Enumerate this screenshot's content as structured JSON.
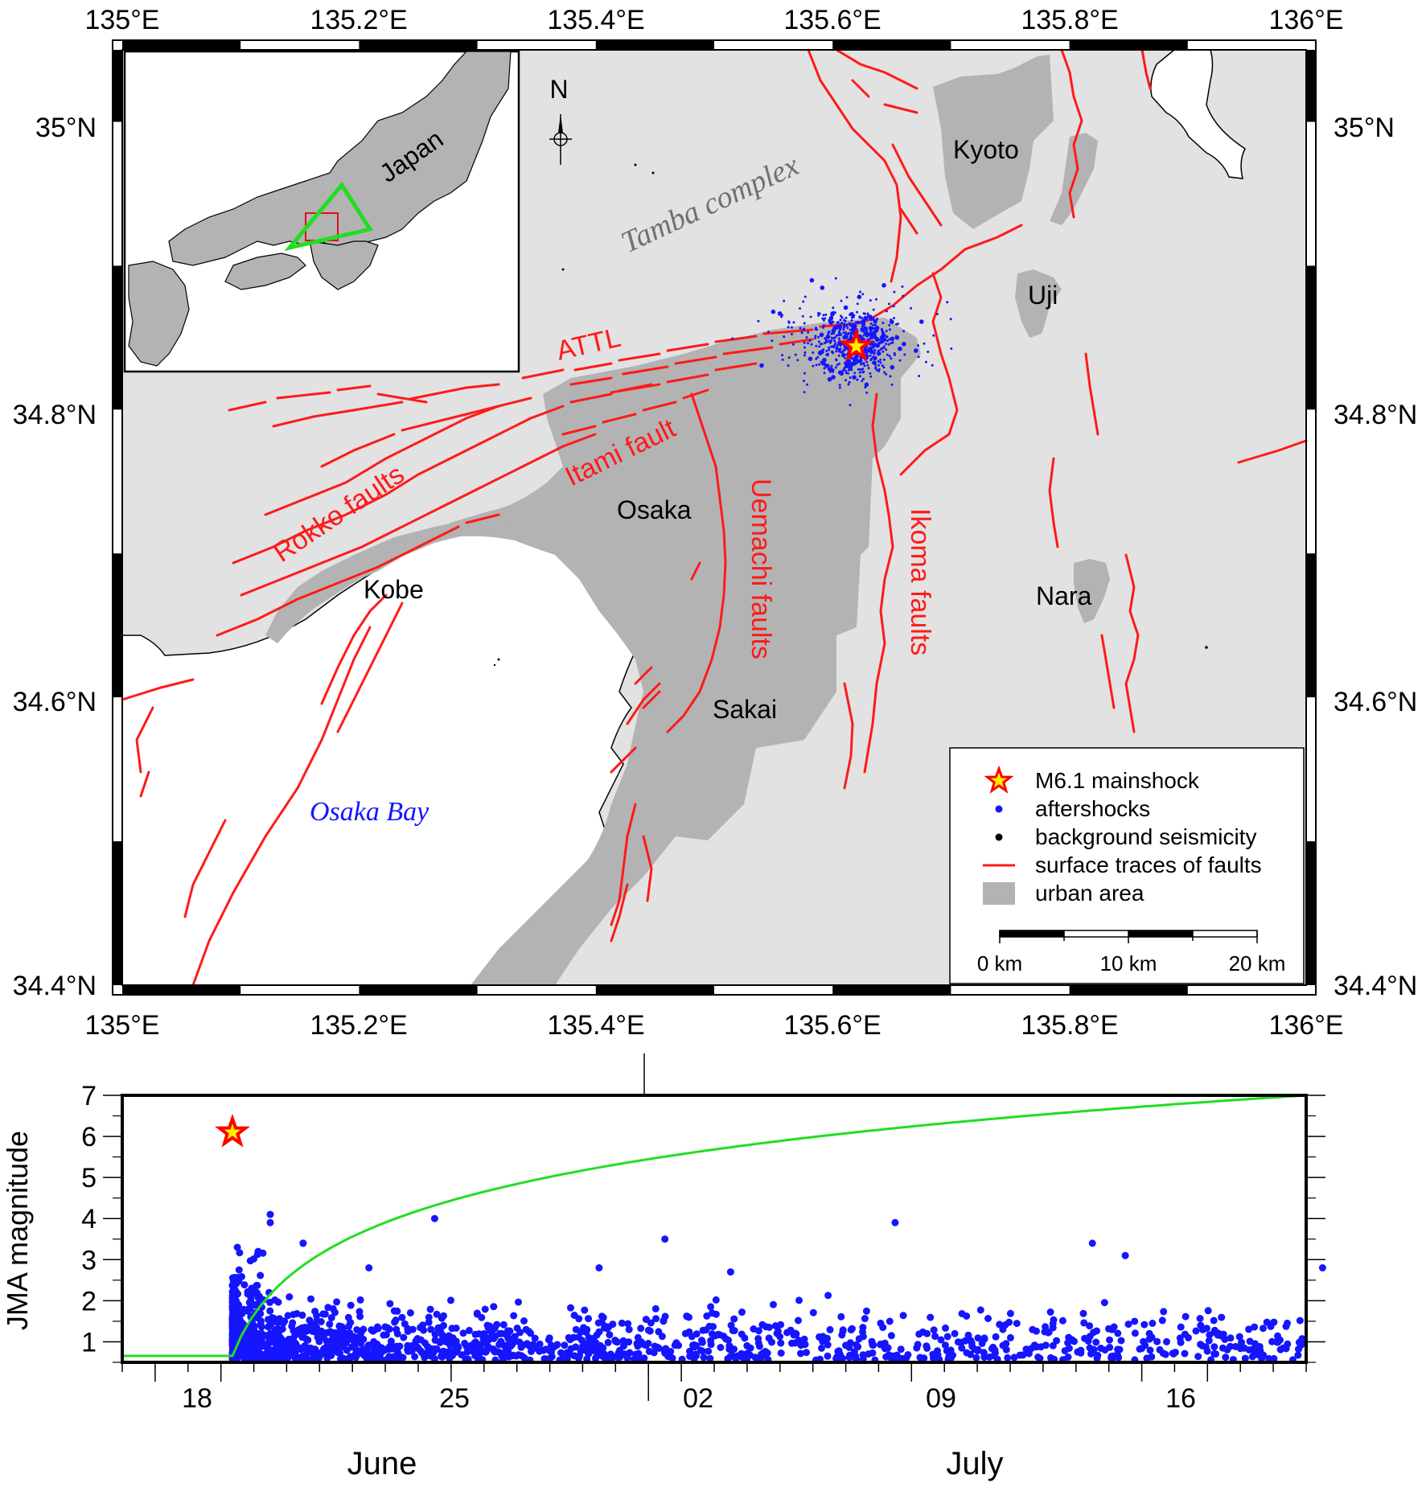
{
  "map": {
    "lon_ticks": [
      "135°E",
      "135.2°E",
      "135.4°E",
      "135.6°E",
      "135.8°E",
      "136°E"
    ],
    "lat_ticks": [
      "35°N",
      "34.8°N",
      "34.6°N",
      "34.4°N"
    ],
    "north_label": "N",
    "region_labels": {
      "tamba": "Tamba complex",
      "osaka_bay": "Osaka Bay"
    },
    "city_labels": {
      "kyoto": "Kyoto",
      "uji": "Uji",
      "osaka": "Osaka",
      "kobe": "Kobe",
      "sakai": "Sakai",
      "nara": "Nara"
    },
    "fault_labels": {
      "attl": "ATTL",
      "itami": "Itami fault",
      "rokko": "Rokko faults",
      "uemachi": "Uemachi faults",
      "ikoma": "Ikoma faults"
    },
    "inset": {
      "label": "Japan"
    },
    "mainshock": {
      "lon": 135.62,
      "lat": 34.844,
      "magnitude": 6.1
    },
    "colors": {
      "land": "#e2e2e2",
      "urban": "#b3b3b3",
      "water": "#ffffff",
      "fault": "#ff1a1a",
      "aftershock": "#1515ff",
      "background": "#000000",
      "inset_box": "#e01010",
      "inset_triangle": "#22dd22",
      "star_fill": "#ffee00",
      "star_stroke": "#ff0000"
    }
  },
  "legend": {
    "items": [
      {
        "icon": "star-icon",
        "label": "M6.1 mainshock"
      },
      {
        "icon": "blue-dot-icon",
        "label": "aftershocks"
      },
      {
        "icon": "black-dot-icon",
        "label": "background seismicity"
      },
      {
        "icon": "red-line-icon",
        "label": "surface traces of faults"
      },
      {
        "icon": "gray-box-icon",
        "label": "urban area"
      }
    ],
    "scale_labels": [
      "0 km",
      "10 km",
      "20 km"
    ]
  },
  "chart_data": {
    "type": "scatter",
    "ylabel": "JMA magnitude",
    "y_ticks": [
      "1",
      "2",
      "3",
      "4",
      "5",
      "6",
      "7"
    ],
    "ylim": [
      0.5,
      7
    ],
    "x_ticks": [
      "18",
      "25",
      "02",
      "09",
      "16"
    ],
    "x_month_labels": [
      "June",
      "July"
    ],
    "x_range": [
      "2018-06-15",
      "2018-07-21"
    ],
    "mainshock": {
      "date": "2018-06-18",
      "magnitude": 6.1
    },
    "cumulative_curve_color": "#22dd22",
    "notable_aftershocks": [
      {
        "date": "2018-06-18",
        "magnitude": 3.3
      },
      {
        "date": "2018-06-19",
        "magnitude": 4.1
      },
      {
        "date": "2018-06-19",
        "magnitude": 3.9
      },
      {
        "date": "2018-06-20",
        "magnitude": 3.4
      },
      {
        "date": "2018-06-20",
        "magnitude": 3.4
      },
      {
        "date": "2018-06-22",
        "magnitude": 2.8
      },
      {
        "date": "2018-06-24",
        "magnitude": 4.0
      },
      {
        "date": "2018-06-29",
        "magnitude": 2.8
      },
      {
        "date": "2018-07-01",
        "magnitude": 3.5
      },
      {
        "date": "2018-07-03",
        "magnitude": 2.7
      },
      {
        "date": "2018-07-08",
        "magnitude": 3.9
      },
      {
        "date": "2018-07-14",
        "magnitude": 3.4
      },
      {
        "date": "2018-07-15",
        "magnitude": 3.1
      },
      {
        "date": "2018-07-21",
        "magnitude": 2.8
      }
    ]
  }
}
